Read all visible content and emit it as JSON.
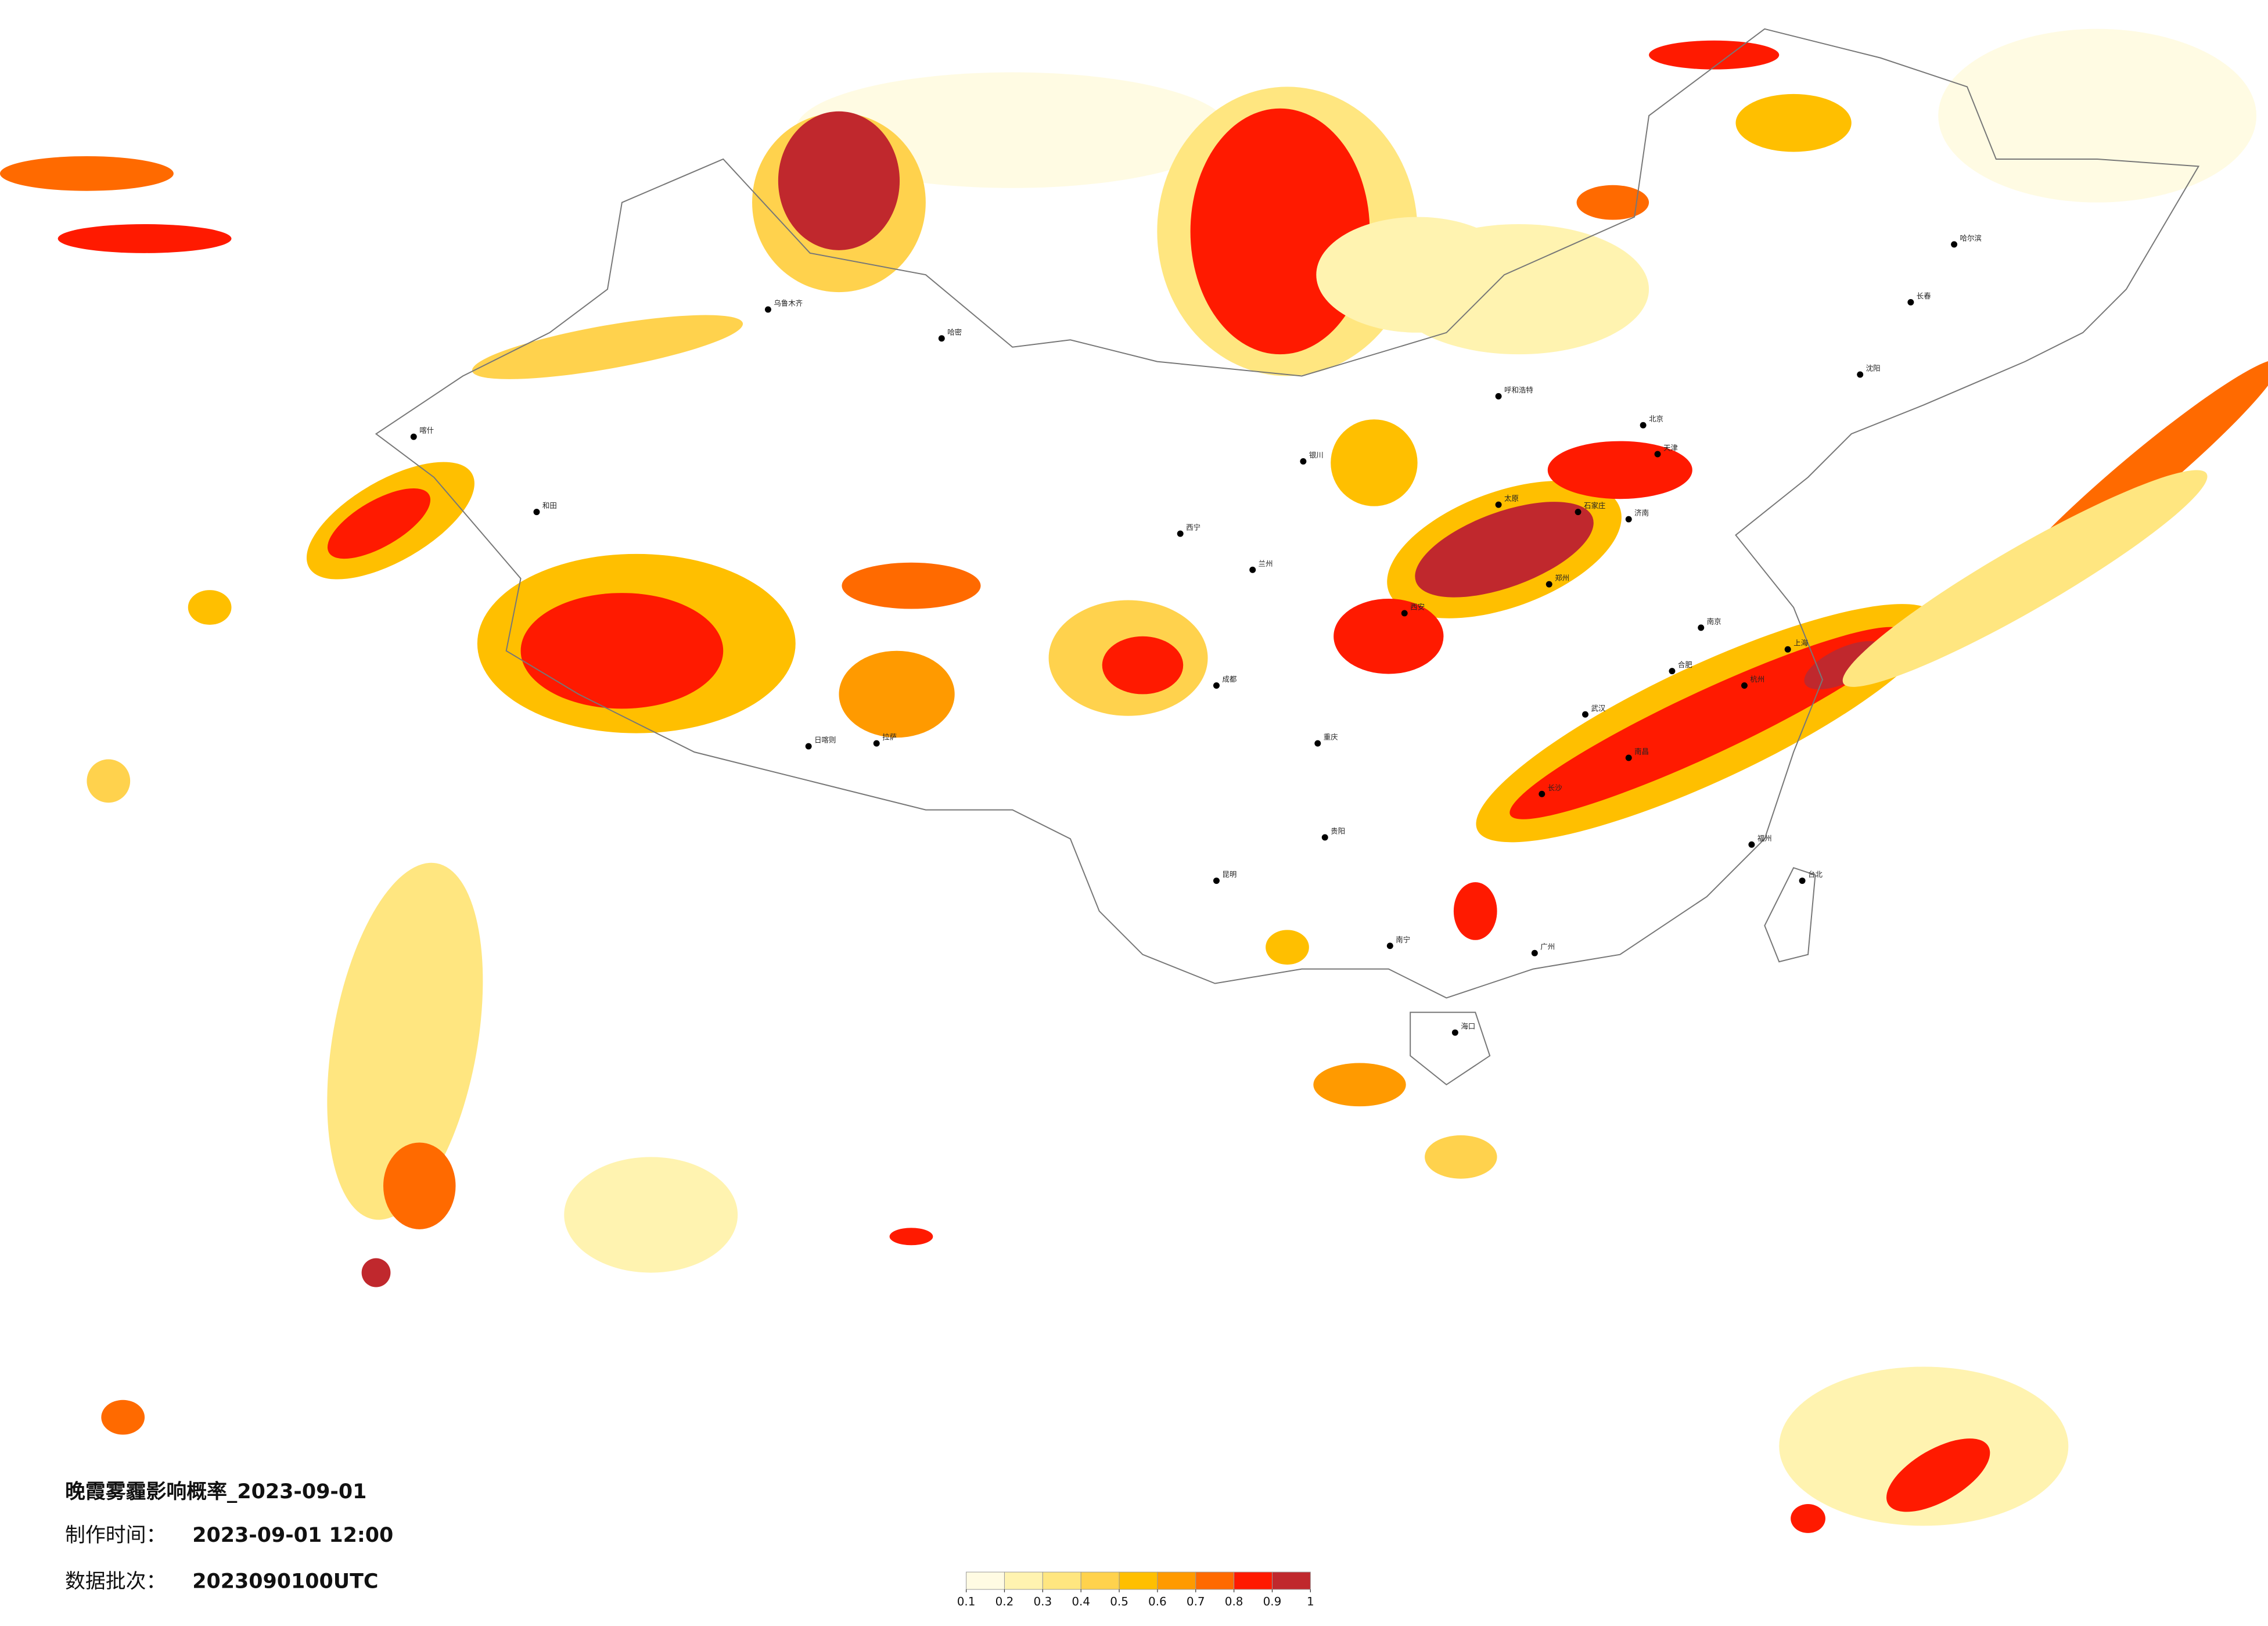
{
  "title": "晚霞雾霾影响概率_2023-09-01",
  "production_time": {
    "label": "制作时间：",
    "value": "2023-09-01 12:00"
  },
  "data_batch": {
    "label": "数据批次：",
    "value": "2023090100UTC"
  },
  "legend": {
    "ticks": [
      0.1,
      0.2,
      0.3,
      0.4,
      0.5,
      0.6,
      0.7,
      0.8,
      0.9,
      1
    ],
    "colors": [
      "#fffbe3",
      "#fff3b0",
      "#ffe680",
      "#ffd24d",
      "#ffbf00",
      "#ff9a00",
      "#ff6a00",
      "#ff1a00",
      "#c0282d"
    ]
  },
  "cities": [
    "哈密",
    "和田",
    "喀什",
    "拉萨",
    "日喀则",
    "乌鲁木齐",
    "西宁",
    "兰州",
    "银川",
    "呼和浩特",
    "北京",
    "天津",
    "石家庄",
    "太原",
    "郑州",
    "西安",
    "成都",
    "重庆",
    "贵阳",
    "昆明",
    "南宁",
    "广州",
    "长沙",
    "武汉",
    "南京",
    "上海",
    "杭州",
    "福州",
    "台北",
    "海口",
    "哈尔滨",
    "长春",
    "沈阳",
    "济南",
    "合肥",
    "南昌"
  ]
}
